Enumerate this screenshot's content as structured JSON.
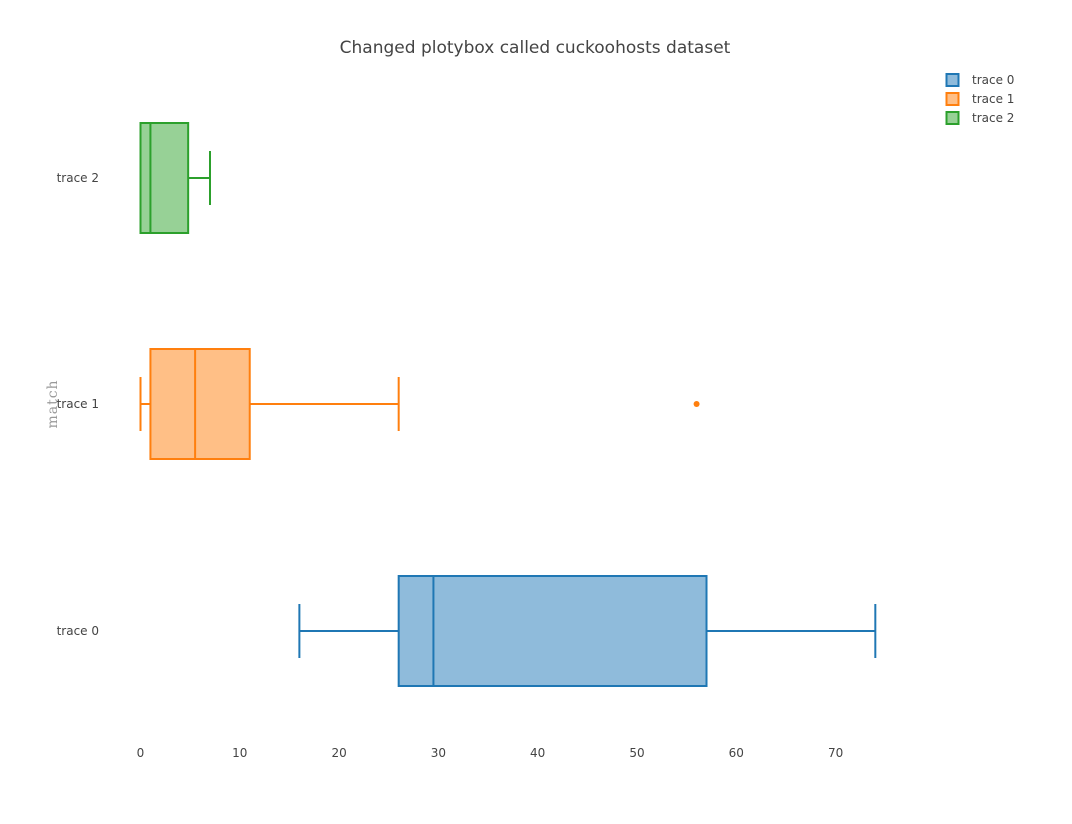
{
  "chart_data": {
    "type": "box",
    "orientation": "horizontal",
    "title": "Changed plotybox called cuckoohosts dataset",
    "xlabel": "",
    "ylabel": "match",
    "xlim": [
      0,
      80
    ],
    "xticks": [
      0,
      10,
      20,
      30,
      40,
      50,
      60,
      70
    ],
    "categories": [
      "trace 0",
      "trace 1",
      "trace 2"
    ],
    "grid": false,
    "legend": {
      "position": "top-right"
    },
    "series": [
      {
        "name": "trace 0",
        "color": "#1f77b4",
        "fill": "#8fbbdb",
        "min": 16,
        "q1": 26,
        "median": 29.5,
        "q3": 57,
        "max": 74,
        "outliers": []
      },
      {
        "name": "trace 1",
        "color": "#ff7f0e",
        "fill": "#ffbf86",
        "min": 0,
        "q1": 1,
        "median": 5.5,
        "q3": 11,
        "max": 26,
        "outliers": [
          56
        ]
      },
      {
        "name": "trace 2",
        "color": "#2ca02c",
        "fill": "#97d196",
        "min": 0,
        "q1": 0,
        "median": 1,
        "q3": 4.8,
        "max": 7,
        "outliers": []
      }
    ]
  }
}
